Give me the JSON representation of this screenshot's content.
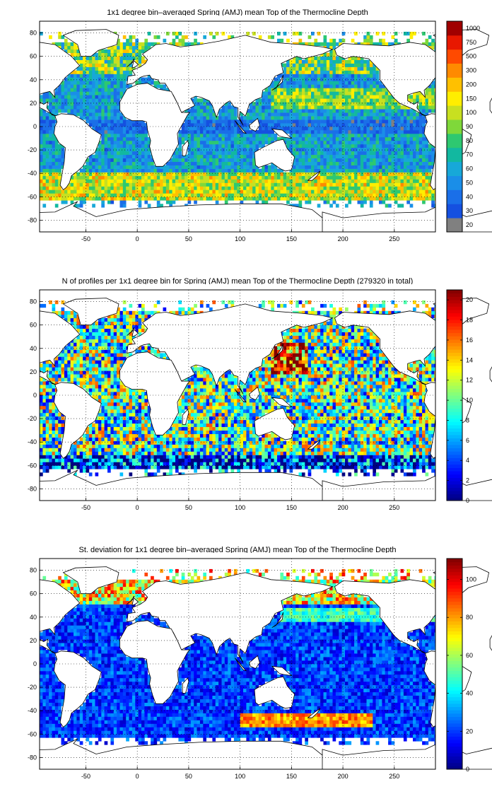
{
  "panels": [
    {
      "title": "1x1 degree bin–averaged Spring (AMJ) mean Top of the Thermocline Depth",
      "colorbar": {
        "type": "discrete",
        "labels": [
          "20",
          "30",
          "40",
          "50",
          "60",
          "70",
          "80",
          "90",
          "100",
          "150",
          "200",
          "300",
          "500",
          "750",
          "1000"
        ],
        "colors": [
          "#808080",
          "#1550e0",
          "#1a6fe8",
          "#1a8ee8",
          "#17a8d8",
          "#12b8a0",
          "#2ec870",
          "#7fd83a",
          "#c8e020",
          "#ffee00",
          "#ffc000",
          "#ff8a00",
          "#ff4a00",
          "#e81800",
          "#a00000"
        ]
      }
    },
    {
      "title": "N of profiles per 1x1 degree bin for Spring (AMJ) mean Top of the Thermocline Depth  (279320 in total)",
      "colorbar": {
        "type": "continuous",
        "labels": [
          "0",
          "2",
          "4",
          "6",
          "8",
          "10",
          "12",
          "14",
          "16",
          "18",
          "20"
        ],
        "min": 0,
        "max": 21
      }
    },
    {
      "title": "St. deviation for 1x1 degree bin–averaged Spring (AMJ) mean Top of the Thermocline Depth",
      "colorbar": {
        "type": "continuous",
        "labels": [
          "0",
          "20",
          "40",
          "60",
          "80",
          "100"
        ],
        "min": 0,
        "max": 111
      }
    }
  ],
  "axes": {
    "x_ticks": [
      "-50",
      "0",
      "50",
      "100",
      "150",
      "200",
      "250"
    ],
    "y_ticks": [
      "80",
      "60",
      "40",
      "20",
      "0",
      "-20",
      "-40",
      "-60",
      "-80"
    ],
    "x_range": [
      -95,
      290
    ],
    "y_range": [
      -90,
      90
    ],
    "grid": "dotted"
  },
  "icons": {
    "coastline": "world-coastline-map"
  }
}
